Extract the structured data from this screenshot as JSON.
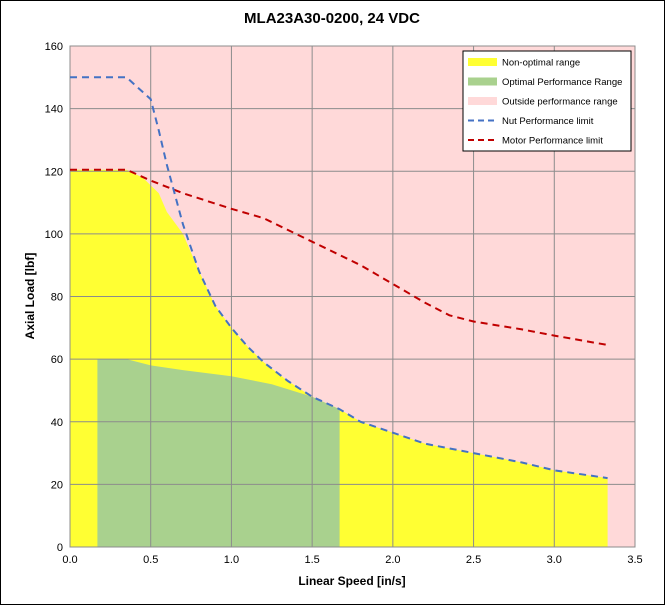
{
  "chart_data": {
    "type": "area",
    "title": "MLA23A30-0200, 24 VDC",
    "xlabel": "Linear Speed [in/s]",
    "ylabel": "Axial Load [lbf]",
    "xlim": [
      0,
      3.5
    ],
    "ylim": [
      0,
      160
    ],
    "x_ticks": [
      "0.0",
      "0.5",
      "1.0",
      "1.5",
      "2.0",
      "2.5",
      "3.0",
      "3.5"
    ],
    "y_ticks": [
      "0",
      "20",
      "40",
      "60",
      "80",
      "100",
      "120",
      "140",
      "160"
    ],
    "grid": true,
    "legend_position": "top-right",
    "colors": {
      "non_optimal": "#ffff33",
      "optimal": "#a9d18e",
      "outside": "#ffd9d9",
      "nut_line": "#4472c4",
      "motor_line": "#c00000",
      "grid": "#8c8c8c"
    },
    "legend": [
      {
        "label": "Non-optimal range",
        "style": "band",
        "color": "#ffff33"
      },
      {
        "label": "Optimal Performance Range",
        "style": "band",
        "color": "#a9d18e"
      },
      {
        "label": "Outside performance range",
        "style": "band",
        "color": "#ffd9d9"
      },
      {
        "label": "Nut Performance limit",
        "style": "dash",
        "color": "#4472c4"
      },
      {
        "label": "Motor Performance limit",
        "style": "dash",
        "color": "#c00000"
      }
    ],
    "series": [
      {
        "name": "Nut Performance limit",
        "kind": "line",
        "x": [
          0,
          0.35,
          0.5,
          0.55,
          0.6,
          0.7,
          0.8,
          0.9,
          1.0,
          1.1,
          1.2,
          1.35,
          1.5,
          1.67,
          1.8,
          2.0,
          2.2,
          2.5,
          2.8,
          3.0,
          3.33
        ],
        "y": [
          150,
          150,
          143,
          133,
          122,
          103,
          88,
          77,
          70,
          64,
          59,
          53,
          48,
          44,
          40,
          36.5,
          33,
          30,
          27,
          24.5,
          22
        ]
      },
      {
        "name": "Motor Performance limit",
        "kind": "line",
        "x": [
          0,
          0.35,
          0.5,
          0.7,
          1.0,
          1.2,
          1.4,
          1.6,
          1.8,
          2.0,
          2.2,
          2.35,
          2.5,
          2.8,
          3.0,
          3.33
        ],
        "y": [
          120.5,
          120.5,
          117,
          113,
          108,
          105,
          100,
          95,
          90,
          84,
          78,
          74,
          72,
          69.5,
          67.5,
          64.5
        ]
      },
      {
        "name": "Non-optimal range",
        "kind": "area",
        "x": [
          0,
          0.35,
          0.45,
          0.55,
          0.6,
          0.7,
          0.8,
          0.9,
          1.0,
          1.1,
          1.2,
          1.35,
          1.5,
          1.67,
          1.8,
          2.0,
          2.2,
          2.5,
          2.8,
          3.0,
          3.33
        ],
        "y": [
          120.5,
          120.5,
          118,
          113,
          107,
          100,
          88,
          77,
          70,
          64,
          59,
          53,
          48,
          44,
          40,
          36.5,
          33,
          30,
          27,
          24.5,
          22
        ]
      },
      {
        "name": "Optimal Performance Range",
        "kind": "area",
        "x": [
          0.17,
          0.35,
          0.5,
          0.7,
          1.0,
          1.25,
          1.5,
          1.67
        ],
        "y": [
          60,
          60,
          58,
          56.5,
          54.5,
          52,
          48,
          44
        ]
      }
    ]
  }
}
